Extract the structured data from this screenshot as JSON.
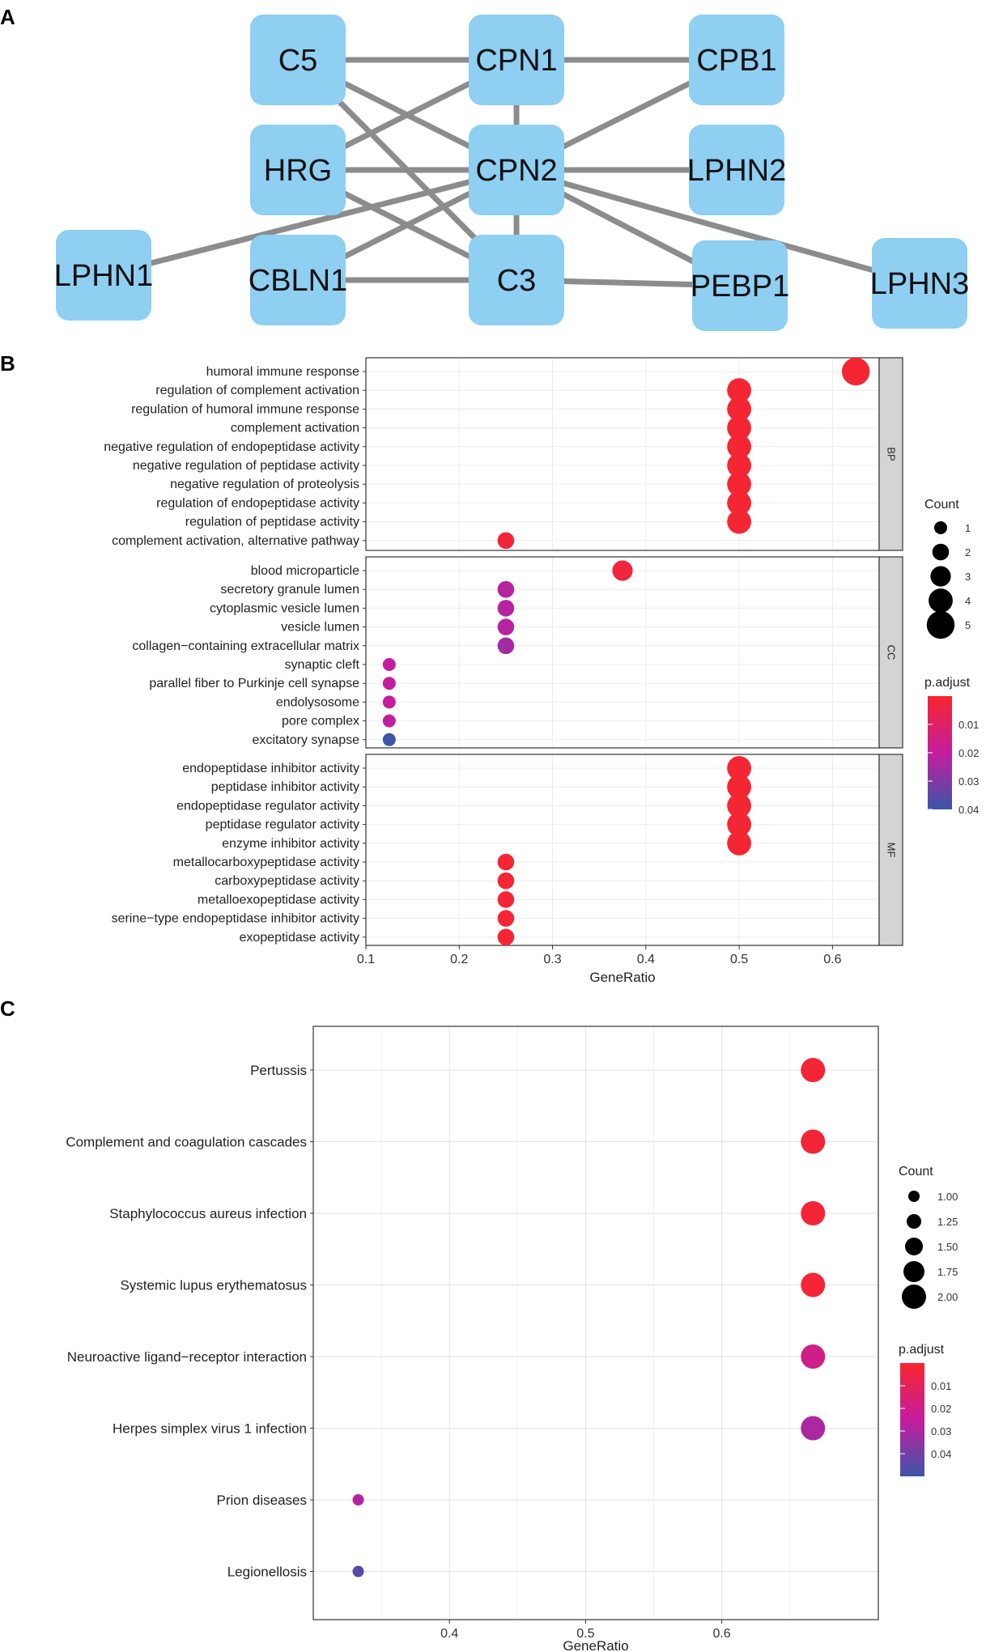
{
  "panels": {
    "a": "A",
    "b": "B",
    "c": "C"
  },
  "chart_data": [
    {
      "type": "network",
      "panel": "A",
      "nodes": [
        "C5",
        "CPN1",
        "CPB1",
        "HRG",
        "CPN2",
        "LPHN2",
        "LPHN1",
        "CBLN1",
        "C3",
        "PEBP1",
        "LPHN3"
      ],
      "edges": [
        [
          "C5",
          "CPN1"
        ],
        [
          "CPN1",
          "CPB1"
        ],
        [
          "C5",
          "CPN2"
        ],
        [
          "C5",
          "C3"
        ],
        [
          "HRG",
          "CPN1"
        ],
        [
          "HRG",
          "CPN2"
        ],
        [
          "HRG",
          "C3"
        ],
        [
          "CPN1",
          "CPN2"
        ],
        [
          "CPN2",
          "CPB1"
        ],
        [
          "CPN2",
          "LPHN2"
        ],
        [
          "LPHN1",
          "CPN2"
        ],
        [
          "CBLN1",
          "CPN2"
        ],
        [
          "CBLN1",
          "C3"
        ],
        [
          "CPN2",
          "C3"
        ],
        [
          "CPN2",
          "PEBP1"
        ],
        [
          "CPN2",
          "LPHN3"
        ],
        [
          "C3",
          "PEBP1"
        ]
      ],
      "node_color": "#8ecff2",
      "edge_color": "#8c8c8c"
    },
    {
      "type": "scatter",
      "panel": "B",
      "xlabel": "GeneRatio",
      "xlim": [
        0.1,
        0.65
      ],
      "xticks": [
        "0.1",
        "0.2",
        "0.3",
        "0.4",
        "0.5",
        "0.6"
      ],
      "facets": [
        {
          "name": "BP",
          "terms": [
            {
              "label": "humoral immune response",
              "x": 0.625,
              "count": 5,
              "padj": 0.001
            },
            {
              "label": "regulation of complement activation",
              "x": 0.5,
              "count": 4,
              "padj": 0.001
            },
            {
              "label": "regulation of humoral immune response",
              "x": 0.5,
              "count": 4,
              "padj": 0.001
            },
            {
              "label": "complement activation",
              "x": 0.5,
              "count": 4,
              "padj": 0.001
            },
            {
              "label": "negative regulation of endopeptidase activity",
              "x": 0.5,
              "count": 4,
              "padj": 0.001
            },
            {
              "label": "negative regulation of peptidase activity",
              "x": 0.5,
              "count": 4,
              "padj": 0.001
            },
            {
              "label": "negative regulation of proteolysis",
              "x": 0.5,
              "count": 4,
              "padj": 0.001
            },
            {
              "label": "regulation of endopeptidase activity",
              "x": 0.5,
              "count": 4,
              "padj": 0.001
            },
            {
              "label": "regulation of peptidase activity",
              "x": 0.5,
              "count": 4,
              "padj": 0.001
            },
            {
              "label": "complement activation, alternative pathway",
              "x": 0.25,
              "count": 2,
              "padj": 0.002
            }
          ]
        },
        {
          "name": "CC",
          "terms": [
            {
              "label": "blood microparticle",
              "x": 0.375,
              "count": 3,
              "padj": 0.003
            },
            {
              "label": "secretory granule lumen",
              "x": 0.25,
              "count": 2,
              "padj": 0.022
            },
            {
              "label": "cytoplasmic vesicle lumen",
              "x": 0.25,
              "count": 2,
              "padj": 0.022
            },
            {
              "label": "vesicle lumen",
              "x": 0.25,
              "count": 2,
              "padj": 0.022
            },
            {
              "label": "collagen−containing extracellular matrix",
              "x": 0.25,
              "count": 2,
              "padj": 0.025
            },
            {
              "label": "synaptic cleft",
              "x": 0.125,
              "count": 1,
              "padj": 0.02
            },
            {
              "label": "parallel fiber to Purkinje cell synapse",
              "x": 0.125,
              "count": 1,
              "padj": 0.02
            },
            {
              "label": "endolysosome",
              "x": 0.125,
              "count": 1,
              "padj": 0.02
            },
            {
              "label": "pore complex",
              "x": 0.125,
              "count": 1,
              "padj": 0.021
            },
            {
              "label": "excitatory synapse",
              "x": 0.125,
              "count": 1,
              "padj": 0.04
            }
          ]
        },
        {
          "name": "MF",
          "terms": [
            {
              "label": "endopeptidase inhibitor activity",
              "x": 0.5,
              "count": 4,
              "padj": 0.001
            },
            {
              "label": "peptidase inhibitor activity",
              "x": 0.5,
              "count": 4,
              "padj": 0.001
            },
            {
              "label": "endopeptidase regulator activity",
              "x": 0.5,
              "count": 4,
              "padj": 0.001
            },
            {
              "label": "peptidase regulator activity",
              "x": 0.5,
              "count": 4,
              "padj": 0.001
            },
            {
              "label": "enzyme inhibitor activity",
              "x": 0.5,
              "count": 4,
              "padj": 0.001
            },
            {
              "label": "metallocarboxypeptidase activity",
              "x": 0.25,
              "count": 2,
              "padj": 0.001
            },
            {
              "label": "carboxypeptidase activity",
              "x": 0.25,
              "count": 2,
              "padj": 0.001
            },
            {
              "label": "metalloexopeptidase activity",
              "x": 0.25,
              "count": 2,
              "padj": 0.001
            },
            {
              "label": "serine−type endopeptidase inhibitor activity",
              "x": 0.25,
              "count": 2,
              "padj": 0.001
            },
            {
              "label": "exopeptidase activity",
              "x": 0.25,
              "count": 2,
              "padj": 0.001
            }
          ]
        }
      ],
      "legend_count": {
        "title": "Count",
        "values": [
          1,
          2,
          3,
          4,
          5
        ],
        "labels": [
          "1",
          "2",
          "3",
          "4",
          "5"
        ]
      },
      "legend_color": {
        "title": "p.adjust",
        "labels": [
          "0.01",
          "0.02",
          "0.03",
          "0.04"
        ],
        "range": [
          0.04,
          0.0
        ]
      },
      "colors": {
        "low": "#f7262d",
        "mid": "#c51d9e",
        "high": "#3c55a8"
      }
    },
    {
      "type": "scatter",
      "panel": "C",
      "xlabel": "GeneRatio",
      "xlim": [
        0.3,
        0.715
      ],
      "xticks": [
        "0.4",
        "0.5",
        "0.6"
      ],
      "terms": [
        {
          "label": "Pertussis",
          "x": 0.667,
          "count": 2,
          "padj": 0.002
        },
        {
          "label": "Complement and coagulation cascades",
          "x": 0.667,
          "count": 2,
          "padj": 0.002
        },
        {
          "label": "Staphylococcus aureus infection",
          "x": 0.667,
          "count": 2,
          "padj": 0.002
        },
        {
          "label": "Systemic lupus erythematosus",
          "x": 0.667,
          "count": 2,
          "padj": 0.002
        },
        {
          "label": "Neuroactive ligand−receptor interaction",
          "x": 0.667,
          "count": 2,
          "padj": 0.02
        },
        {
          "label": "Herpes simplex virus 1 infection",
          "x": 0.667,
          "count": 2,
          "padj": 0.03
        },
        {
          "label": "Prion diseases",
          "x": 0.333,
          "count": 1,
          "padj": 0.028
        },
        {
          "label": "Legionellosis",
          "x": 0.333,
          "count": 1,
          "padj": 0.045
        }
      ],
      "legend_count": {
        "title": "Count",
        "values": [
          1.0,
          1.25,
          1.5,
          1.75,
          2.0
        ],
        "labels": [
          "1.00",
          "1.25",
          "1.50",
          "1.75",
          "2.00"
        ]
      },
      "legend_color": {
        "title": "p.adjust",
        "labels": [
          "0.01",
          "0.02",
          "0.03",
          "0.04"
        ],
        "range": [
          0.05,
          0.0
        ]
      },
      "colors": {
        "low": "#f7262d",
        "mid": "#c51d9e",
        "high": "#3c55a8"
      }
    }
  ]
}
